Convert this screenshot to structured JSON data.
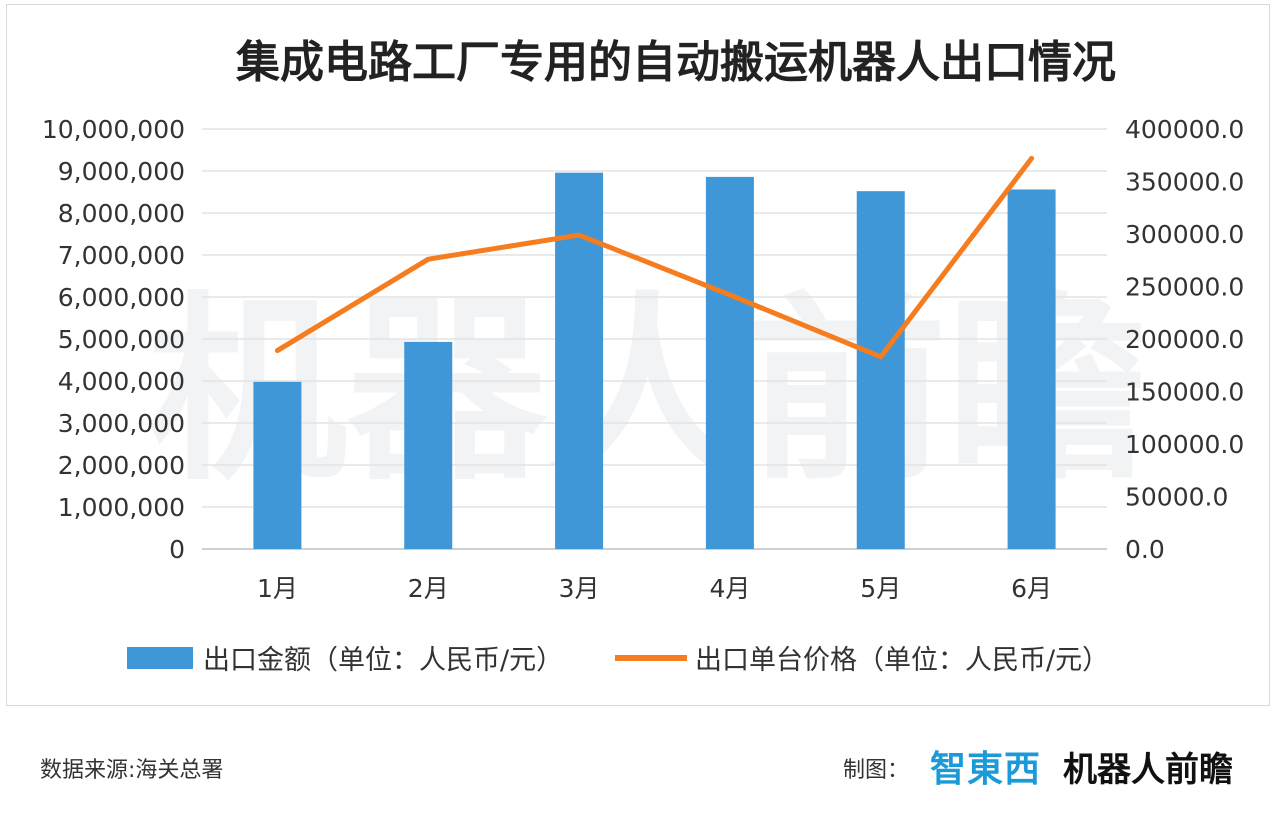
{
  "chart_data": {
    "type": "bar",
    "title": "集成电路工厂专用的自动搬运机器人出口情况",
    "categories": [
      "1月",
      "2月",
      "3月",
      "4月",
      "5月",
      "6月"
    ],
    "series": [
      {
        "name": "出口金额（单位：人民币/元）",
        "type": "bar",
        "axis": "left",
        "color": "#3f97d8",
        "values": [
          3980000,
          4930000,
          8960000,
          8860000,
          8520000,
          8560000
        ]
      },
      {
        "name": "出口单台价格（单位：人民币/元）",
        "type": "line",
        "axis": "right",
        "color": "#f57c1f",
        "values": [
          189000,
          276000,
          299000,
          242000,
          183000,
          372000
        ]
      }
    ],
    "left_axis": {
      "ylim": [
        0,
        10000000
      ],
      "ticks": [
        "0",
        "1,000,000",
        "2,000,000",
        "3,000,000",
        "4,000,000",
        "5,000,000",
        "6,000,000",
        "7,000,000",
        "8,000,000",
        "9,000,000",
        "10,000,000"
      ]
    },
    "right_axis": {
      "ylim": [
        0,
        400000
      ],
      "ticks": [
        "0.0",
        "50000.0",
        "100000.0",
        "150000.0",
        "200000.0",
        "250000.0",
        "300000.0",
        "350000.0",
        "400000.0"
      ]
    },
    "grid": true,
    "legend_position": "bottom"
  },
  "watermark": "机器人前瞻",
  "footer": {
    "source": "数据来源:海关总署",
    "credit_label": "制图：",
    "logo_zhidx": "智東西",
    "logo_brand": "机器人前瞻"
  }
}
